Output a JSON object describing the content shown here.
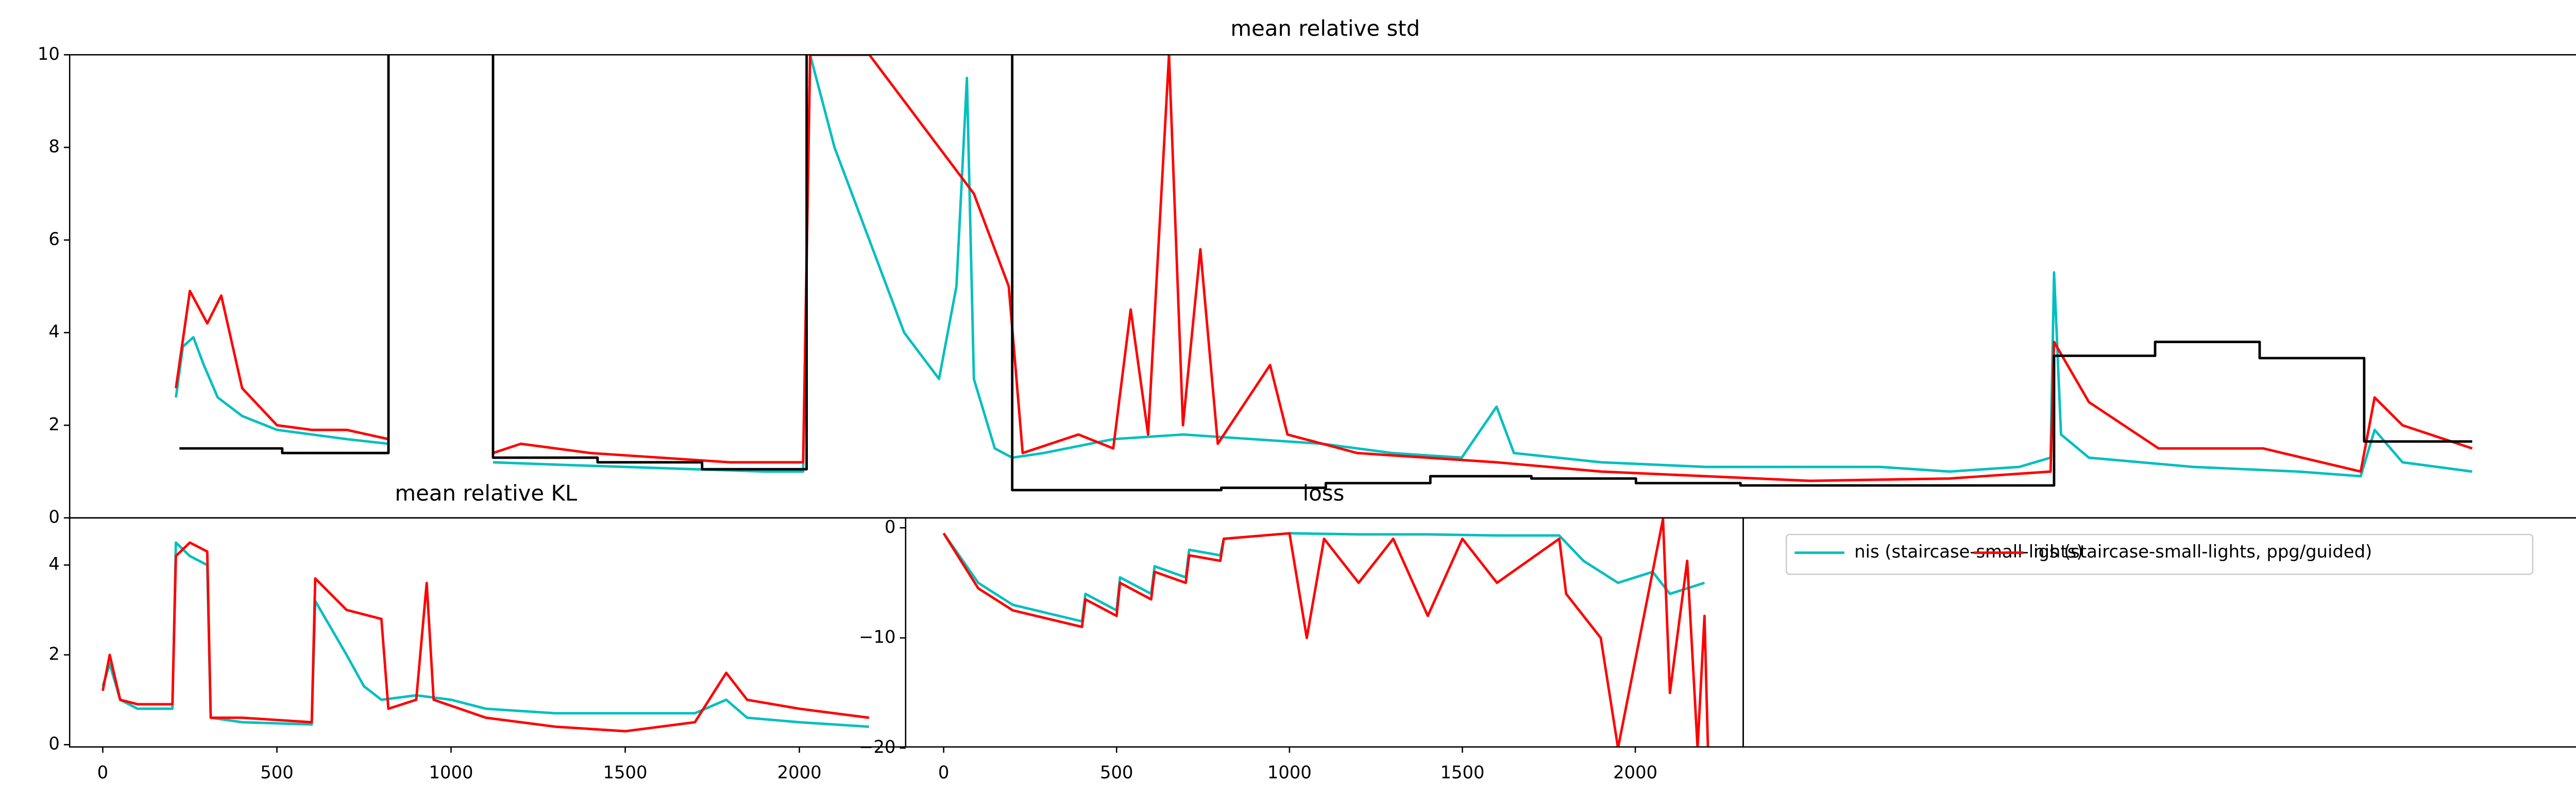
{
  "chart_data": [
    {
      "type": "line",
      "title": "mean relative std",
      "xlim": [
        -95,
        7107
      ],
      "ylim": [
        0,
        10
      ],
      "yticks": [
        0,
        2,
        4,
        6,
        8,
        10
      ],
      "series": [
        {
          "name": "nis (staircase-small-lights)",
          "color": "#00bfbf",
          "x": [
            210,
            230,
            260,
            290,
            330,
            400,
            500,
            600,
            700,
            820,
            970,
            1120,
            1300,
            1500,
            1700,
            1900,
            2010,
            2030,
            2100,
            2200,
            2300,
            2400,
            2450,
            2480,
            2500,
            2560,
            2610,
            2700,
            2900,
            3100,
            3300,
            3500,
            3700,
            3900,
            4000,
            4050,
            4300,
            4600,
            4900,
            5100,
            5300,
            5500,
            5590,
            5600,
            5620,
            5700,
            6000,
            6300,
            6480,
            6520,
            6600,
            6800
          ],
          "values": [
            2.6,
            3.7,
            3.9,
            3.3,
            2.6,
            2.2,
            1.9,
            1.8,
            1.7,
            1.6,
            null,
            1.2,
            1.15,
            1.1,
            1.05,
            1.0,
            1.0,
            10,
            8,
            6,
            4,
            3,
            5,
            9.5,
            3,
            1.5,
            1.3,
            1.4,
            1.7,
            1.8,
            1.7,
            1.6,
            1.4,
            1.3,
            2.4,
            1.4,
            1.2,
            1.1,
            1.1,
            1.1,
            1.0,
            1.1,
            1.3,
            5.3,
            1.8,
            1.3,
            1.1,
            1.0,
            0.9,
            1.9,
            1.2,
            1.0
          ]
        },
        {
          "name": "nis (staircase-small-lights, ppg/guided)",
          "color": "#ff0000",
          "x": [
            210,
            250,
            300,
            340,
            400,
            500,
            600,
            700,
            820,
            970,
            1120,
            1200,
            1400,
            1600,
            1800,
            2010,
            2030,
            2200,
            2300,
            2400,
            2500,
            2600,
            2640,
            2800,
            2900,
            2950,
            3000,
            3060,
            3100,
            3150,
            3200,
            3350,
            3400,
            3600,
            3800,
            4000,
            4300,
            4600,
            4900,
            5300,
            5590,
            5600,
            5700,
            5900,
            6200,
            6480,
            6520,
            6600,
            6800
          ],
          "values": [
            2.8,
            4.9,
            4.2,
            4.8,
            2.8,
            2.0,
            1.9,
            1.9,
            1.7,
            null,
            1.4,
            1.6,
            1.4,
            1.3,
            1.2,
            1.2,
            10,
            10,
            9,
            8,
            7,
            5,
            1.4,
            1.8,
            1.5,
            4.5,
            1.8,
            10,
            2.0,
            5.8,
            1.6,
            3.3,
            1.8,
            1.4,
            1.3,
            1.2,
            1.0,
            0.9,
            0.8,
            0.85,
            1.0,
            3.8,
            2.5,
            1.5,
            1.5,
            1.0,
            2.6,
            2.0,
            1.5
          ]
        },
        {
          "color": "#000000",
          "x": [
            220,
            515,
            515,
            820,
            820,
            970,
            1120,
            1120,
            1420,
            1420,
            1720,
            1720,
            2020,
            2020,
            2300,
            2610,
            2610,
            2910,
            3210,
            3210,
            3510,
            3510,
            3810,
            3810,
            4100,
            4100,
            4400,
            4400,
            4700,
            4700,
            5000,
            5600,
            5600,
            5890,
            5890,
            6190,
            6190,
            6490,
            6490,
            6800
          ],
          "values": [
            1.5,
            1.5,
            1.4,
            1.4,
            10,
            null,
            10,
            1.3,
            1.3,
            1.2,
            1.2,
            1.05,
            1.05,
            10,
            null,
            10,
            0.6,
            0.6,
            0.6,
            0.65,
            0.65,
            0.75,
            0.75,
            0.9,
            0.9,
            0.85,
            0.85,
            0.75,
            0.75,
            0.7,
            0.7,
            0.7,
            3.5,
            3.5,
            3.8,
            3.8,
            3.45,
            3.45,
            1.65,
            1.65
          ]
        }
      ]
    },
    {
      "type": "line",
      "title": "mean relative KL",
      "xlim": [
        -95,
        2305
      ],
      "xticks": [
        0,
        500,
        1000,
        1500,
        2000
      ],
      "ylim": [
        -0.05,
        5.05
      ],
      "yticks": [
        0,
        2,
        4
      ],
      "series": [
        {
          "color": "#00bfbf",
          "x": [
            0,
            20,
            50,
            100,
            200,
            210,
            250,
            300,
            310,
            400,
            600,
            610,
            700,
            750,
            800,
            900,
            1000,
            1100,
            1300,
            1500,
            1700,
            1790,
            1850,
            2000,
            2200
          ],
          "values": [
            1.3,
            1.8,
            1.0,
            0.8,
            0.8,
            4.5,
            4.2,
            4.0,
            0.6,
            0.5,
            0.45,
            3.2,
            2.0,
            1.3,
            1.0,
            1.1,
            1.0,
            0.8,
            0.7,
            0.7,
            0.7,
            1.0,
            0.6,
            0.5,
            0.4
          ]
        },
        {
          "color": "#ff0000",
          "x": [
            0,
            20,
            50,
            100,
            200,
            210,
            250,
            300,
            310,
            400,
            600,
            610,
            700,
            800,
            820,
            900,
            930,
            950,
            1100,
            1300,
            1500,
            1700,
            1790,
            1850,
            2000,
            2200
          ],
          "values": [
            1.2,
            2.0,
            1.0,
            0.9,
            0.9,
            4.2,
            4.5,
            4.3,
            0.6,
            0.6,
            0.5,
            3.7,
            3.0,
            2.8,
            0.8,
            1.0,
            3.6,
            1.0,
            0.6,
            0.4,
            0.3,
            0.5,
            1.6,
            1.0,
            0.8,
            0.6
          ]
        }
      ]
    },
    {
      "type": "line",
      "title": "loss",
      "xlim": [
        -110,
        2312
      ],
      "xticks": [
        0,
        500,
        1000,
        1500,
        2000
      ],
      "ylim": [
        -19.9,
        0.9
      ],
      "yticks": [
        0,
        {
          "value": -10,
          "label": "−10"
        },
        {
          "value": -20,
          "label": "−20"
        }
      ],
      "series": [
        {
          "color": "#00bfbf",
          "x": [
            0,
            100,
            200,
            400,
            410,
            500,
            510,
            600,
            610,
            700,
            710,
            800,
            810,
            1000,
            1200,
            1400,
            1600,
            1780,
            1850,
            1950,
            2050,
            2100,
            2200
          ],
          "values": [
            -0.5,
            -5,
            -7,
            -8.5,
            -6,
            -7.5,
            -4.5,
            -6,
            -3.5,
            -4.5,
            -2,
            -2.5,
            -1,
            -0.5,
            -0.6,
            -0.6,
            -0.7,
            -0.7,
            -3,
            -5,
            -4,
            -6,
            -5
          ]
        },
        {
          "color": "#ff0000",
          "x": [
            0,
            100,
            200,
            400,
            410,
            500,
            510,
            600,
            610,
            700,
            710,
            800,
            810,
            1000,
            1050,
            1100,
            1200,
            1300,
            1400,
            1500,
            1600,
            1780,
            1800,
            1900,
            1950,
            2000,
            2080,
            2100,
            2150,
            2180,
            2200,
            2210
          ],
          "values": [
            -0.5,
            -5.5,
            -7.5,
            -9,
            -6.5,
            -8,
            -5,
            -6.5,
            -4,
            -5,
            -2.5,
            -3,
            -1,
            -0.5,
            -10,
            -1,
            -5,
            -1,
            -8,
            -1,
            -5,
            -1,
            -6,
            -10,
            -20,
            -12,
            0.8,
            -15,
            -3,
            -20,
            -8,
            -20
          ]
        }
      ]
    }
  ]
}
